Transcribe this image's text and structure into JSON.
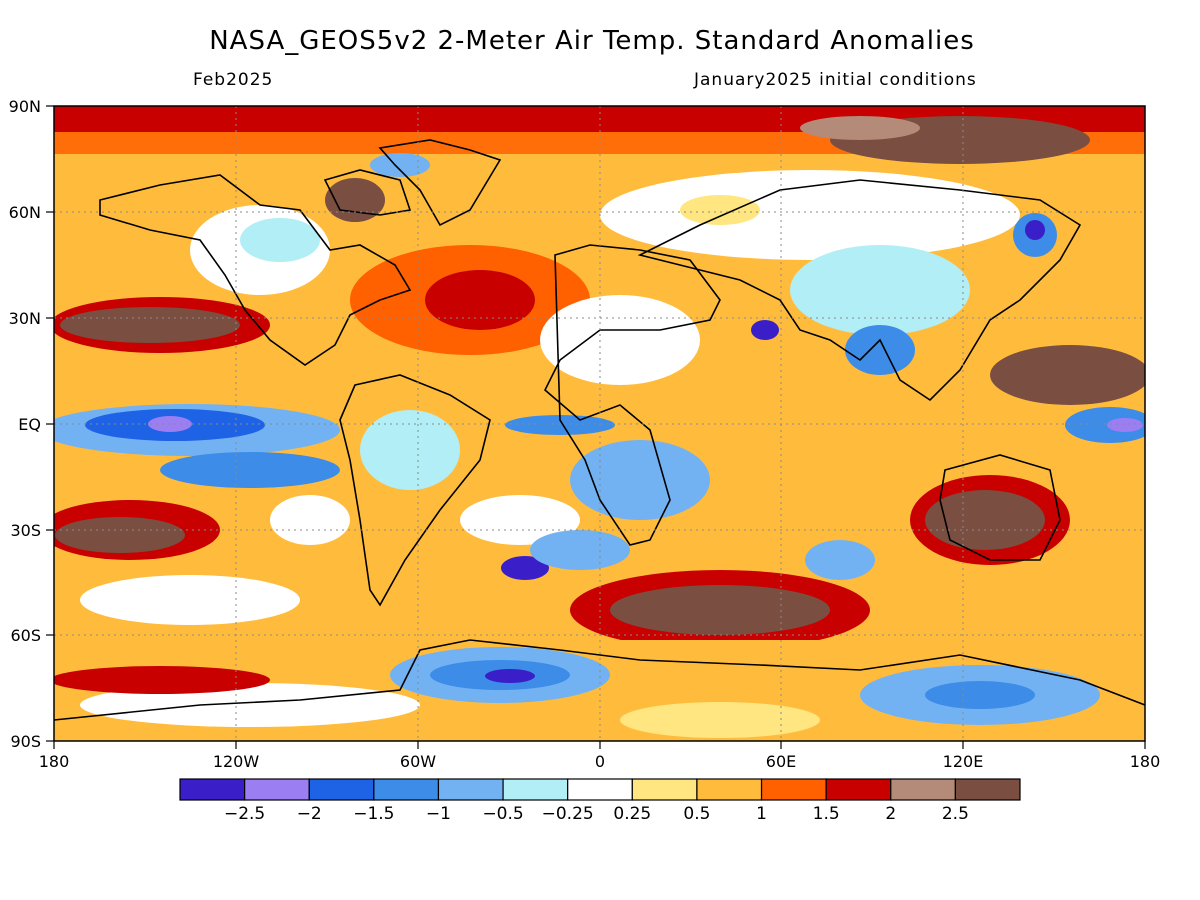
{
  "header": {
    "title": "NASA_GEOS5v2 2-Meter Air Temp. Standard Anomalies",
    "valid_month": "Feb2025",
    "init": "January2025 initial conditions"
  },
  "axes": {
    "lat_ticks": [
      "90N",
      "60N",
      "30N",
      "EQ",
      "30S",
      "60S",
      "90S"
    ],
    "lon_ticks": [
      "180",
      "120W",
      "60W",
      "0",
      "60E",
      "120E",
      "180"
    ]
  },
  "colorbar": {
    "colors": [
      "#3a1fc8",
      "#9a7ef2",
      "#1e62e6",
      "#3c8ce8",
      "#72b2f2",
      "#b2eef6",
      "#ffffff",
      "#ffe680",
      "#ffbc3c",
      "#ff6000",
      "#c80000",
      "#b48a78",
      "#7a4e40"
    ],
    "labels": [
      "-2.5",
      "-2",
      "-1.5",
      "-1",
      "-0.5",
      "-0.25",
      "0.25",
      "0.5",
      "1",
      "1.5",
      "2",
      "2.5"
    ]
  }
}
